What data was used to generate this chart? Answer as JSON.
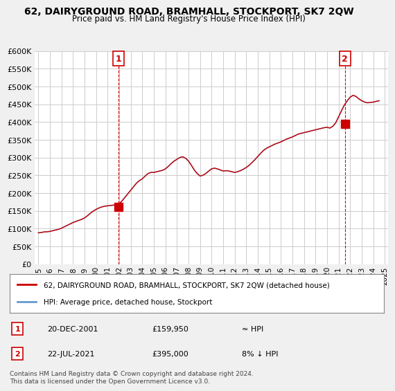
{
  "title": "62, DAIRYGROUND ROAD, BRAMHALL, STOCKPORT, SK7 2QW",
  "subtitle": "Price paid vs. HM Land Registry's House Price Index (HPI)",
  "ylabel_ticks": [
    "£0",
    "£50K",
    "£100K",
    "£150K",
    "£200K",
    "£250K",
    "£300K",
    "£350K",
    "£400K",
    "£450K",
    "£500K",
    "£550K",
    "£600K"
  ],
  "ylim": [
    0,
    600000
  ],
  "ytick_vals": [
    0,
    50000,
    100000,
    150000,
    200000,
    250000,
    300000,
    350000,
    400000,
    450000,
    500000,
    550000,
    600000
  ],
  "hpi_color": "#6699cc",
  "price_color": "#cc0000",
  "background_color": "#f0f0f0",
  "plot_background": "#ffffff",
  "legend_label_price": "62, DAIRYGROUND ROAD, BRAMHALL, STOCKPORT, SK7 2QW (detached house)",
  "legend_label_hpi": "HPI: Average price, detached house, Stockport",
  "sale1_label": "1",
  "sale2_label": "2",
  "sale1_date": "20-DEC-2001",
  "sale1_price": "£159,950",
  "sale1_hpi": "≈ HPI",
  "sale2_date": "22-JUL-2021",
  "sale2_price": "£395,000",
  "sale2_hpi": "8% ↓ HPI",
  "footer": "Contains HM Land Registry data © Crown copyright and database right 2024.\nThis data is licensed under the Open Government Licence v3.0.",
  "hpi_x": [
    1995.0,
    1995.25,
    1995.5,
    1995.75,
    1996.0,
    1996.25,
    1996.5,
    1996.75,
    1997.0,
    1997.25,
    1997.5,
    1997.75,
    1998.0,
    1998.25,
    1998.5,
    1998.75,
    1999.0,
    1999.25,
    1999.5,
    1999.75,
    2000.0,
    2000.25,
    2000.5,
    2000.75,
    2001.0,
    2001.25,
    2001.5,
    2001.75,
    2002.0,
    2002.25,
    2002.5,
    2002.75,
    2003.0,
    2003.25,
    2003.5,
    2003.75,
    2004.0,
    2004.25,
    2004.5,
    2004.75,
    2005.0,
    2005.25,
    2005.5,
    2005.75,
    2006.0,
    2006.25,
    2006.5,
    2006.75,
    2007.0,
    2007.25,
    2007.5,
    2007.75,
    2008.0,
    2008.25,
    2008.5,
    2008.75,
    2009.0,
    2009.25,
    2009.5,
    2009.75,
    2010.0,
    2010.25,
    2010.5,
    2010.75,
    2011.0,
    2011.25,
    2011.5,
    2011.75,
    2012.0,
    2012.25,
    2012.5,
    2012.75,
    2013.0,
    2013.25,
    2013.5,
    2013.75,
    2014.0,
    2014.25,
    2014.5,
    2014.75,
    2015.0,
    2015.25,
    2015.5,
    2015.75,
    2016.0,
    2016.25,
    2016.5,
    2016.75,
    2017.0,
    2017.25,
    2017.5,
    2017.75,
    2018.0,
    2018.25,
    2018.5,
    2018.75,
    2019.0,
    2019.25,
    2019.5,
    2019.75,
    2020.0,
    2020.25,
    2020.5,
    2020.75,
    2021.0,
    2021.25,
    2021.5,
    2021.75,
    2022.0,
    2022.25,
    2022.5,
    2022.75,
    2023.0,
    2023.25,
    2023.5,
    2023.75,
    2024.0,
    2024.25,
    2024.5
  ],
  "hpi_y": [
    88000,
    89000,
    90500,
    91000,
    92000,
    94000,
    96000,
    98000,
    101000,
    105000,
    109000,
    113000,
    117000,
    120000,
    123000,
    126000,
    130000,
    136000,
    143000,
    149000,
    154000,
    158000,
    161000,
    163000,
    164000,
    165000,
    166000,
    167000,
    170000,
    178000,
    188000,
    198000,
    208000,
    218000,
    228000,
    235000,
    240000,
    248000,
    255000,
    258000,
    258000,
    260000,
    262000,
    264000,
    268000,
    275000,
    283000,
    290000,
    295000,
    300000,
    302000,
    298000,
    290000,
    278000,
    265000,
    255000,
    248000,
    250000,
    255000,
    262000,
    268000,
    270000,
    268000,
    265000,
    262000,
    263000,
    262000,
    260000,
    258000,
    260000,
    263000,
    267000,
    272000,
    278000,
    286000,
    294000,
    303000,
    312000,
    320000,
    326000,
    330000,
    334000,
    338000,
    341000,
    344000,
    348000,
    352000,
    355000,
    358000,
    362000,
    366000,
    368000,
    370000,
    372000,
    374000,
    376000,
    378000,
    380000,
    382000,
    384000,
    385000,
    383000,
    388000,
    398000,
    415000,
    432000,
    448000,
    460000,
    470000,
    475000,
    472000,
    465000,
    460000,
    456000,
    454000,
    455000,
    456000,
    458000,
    460000
  ],
  "sale1_x": 2001.96,
  "sale1_y": 159950,
  "sale2_x": 2021.55,
  "sale2_y": 395000,
  "xtick_years": [
    1995,
    1996,
    1997,
    1998,
    1999,
    2000,
    2001,
    2002,
    2003,
    2004,
    2005,
    2006,
    2007,
    2008,
    2009,
    2010,
    2011,
    2012,
    2013,
    2014,
    2015,
    2016,
    2017,
    2018,
    2019,
    2020,
    2021,
    2022,
    2023,
    2024,
    2025
  ]
}
